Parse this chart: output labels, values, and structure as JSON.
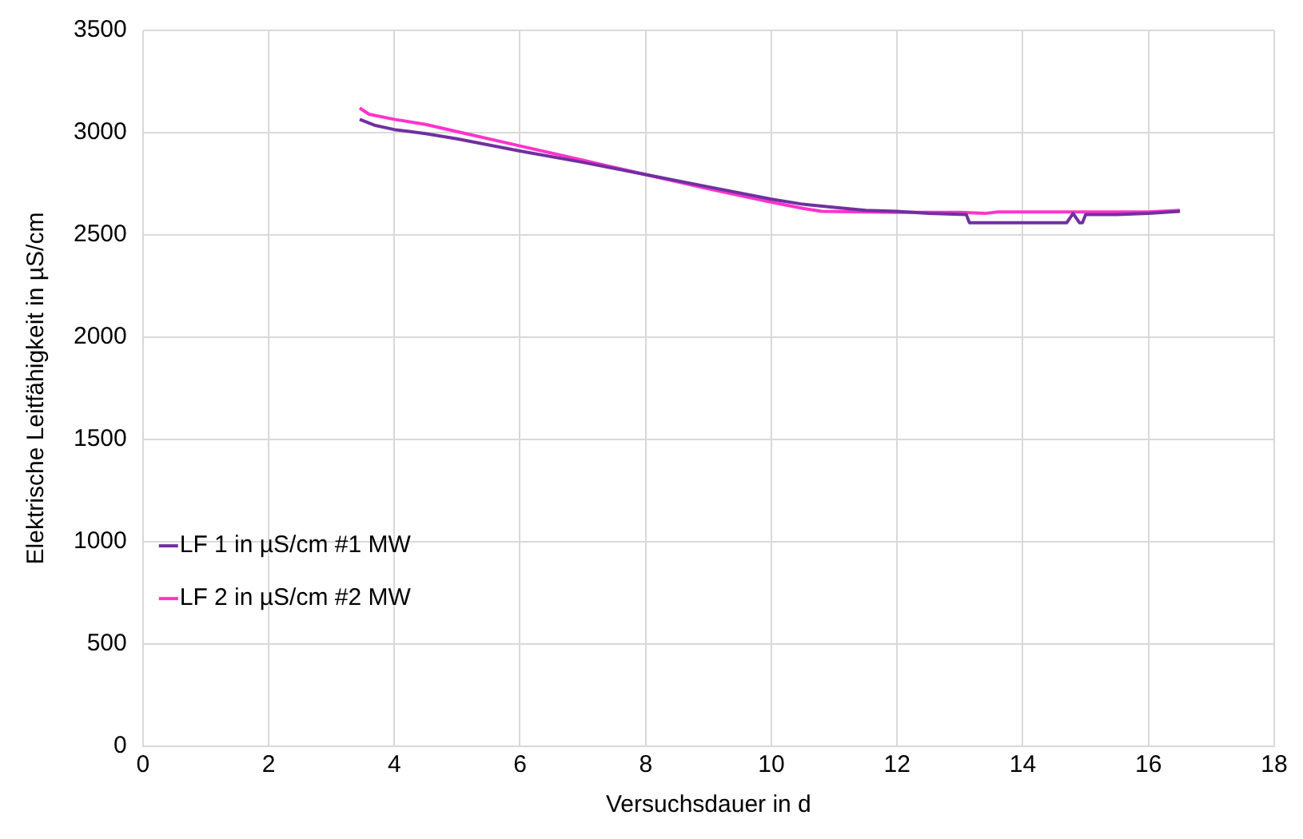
{
  "chart_data": {
    "type": "line",
    "xlabel": "Versuchsdauer in d",
    "ylabel": "Elektrische Leitfähigkeit in µS/cm",
    "xlim": [
      0,
      18
    ],
    "xticks": [
      0,
      2,
      4,
      6,
      8,
      10,
      12,
      14,
      16,
      18
    ],
    "ylim": [
      0,
      3500
    ],
    "yticks": [
      0,
      500,
      1000,
      1500,
      2000,
      2500,
      3000,
      3500
    ],
    "grid": true,
    "legend": "left",
    "marker": "none",
    "line_style": "solid",
    "series": [
      {
        "name": "LF 1 in µS/cm #1 MW",
        "color": "#7030a0",
        "x": [
          3.45,
          3.7,
          4.0,
          4.5,
          5.0,
          6.0,
          7.0,
          8.0,
          9.0,
          10.0,
          10.5,
          11.0,
          11.5,
          12.0,
          12.5,
          13.1,
          13.15,
          14.7,
          14.8,
          14.9,
          14.95,
          15.0,
          15.5,
          16.0,
          16.5
        ],
        "values": [
          3065,
          3035,
          3015,
          2995,
          2970,
          2910,
          2855,
          2795,
          2735,
          2675,
          2650,
          2635,
          2620,
          2615,
          2605,
          2600,
          2560,
          2560,
          2605,
          2560,
          2560,
          2600,
          2600,
          2605,
          2615
        ]
      },
      {
        "name": "LF 2 in µS/cm #2 MW",
        "color": "#ff33cc",
        "x": [
          3.45,
          3.6,
          4.0,
          4.5,
          5.0,
          6.0,
          7.0,
          8.0,
          9.0,
          10.0,
          10.5,
          10.8,
          11.5,
          12.0,
          13.0,
          13.4,
          13.6,
          14.0,
          15.0,
          16.0,
          16.5
        ],
        "values": [
          3120,
          3090,
          3065,
          3040,
          3005,
          2935,
          2865,
          2795,
          2725,
          2660,
          2630,
          2615,
          2612,
          2610,
          2610,
          2605,
          2612,
          2612,
          2612,
          2612,
          2620
        ]
      }
    ]
  }
}
